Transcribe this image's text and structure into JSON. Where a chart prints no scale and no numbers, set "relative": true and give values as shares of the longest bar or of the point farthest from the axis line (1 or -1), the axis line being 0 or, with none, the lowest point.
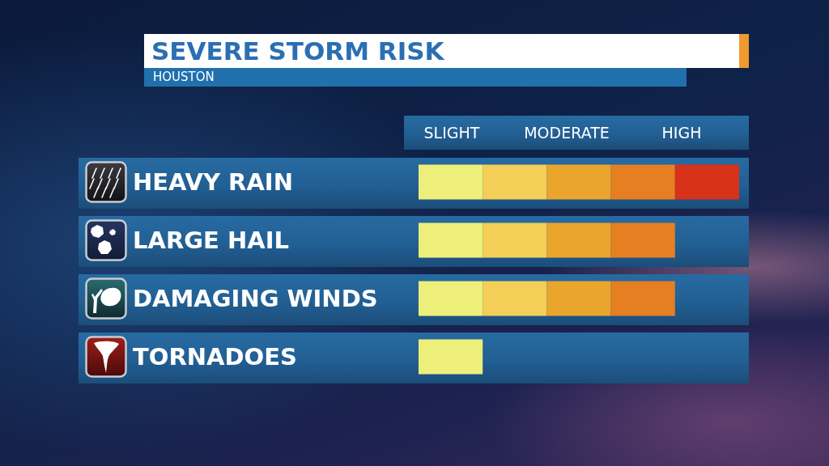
{
  "chart_data": {
    "type": "bar",
    "title": "SEVERE STORM RISK",
    "subtitle": "HOUSTON",
    "orientation": "horizontal",
    "stacked": true,
    "relative": true,
    "categories": [
      "HEAVY RAIN",
      "LARGE HAIL",
      "DAMAGING WINDS",
      "TORNADOES"
    ],
    "series": [
      {
        "color": "#eeee7a",
        "values": [
          0.2,
          0.2,
          0.2,
          0.2
        ]
      },
      {
        "color": "#f4cf57",
        "values": [
          0.2,
          0.2,
          0.2,
          null
        ]
      },
      {
        "color": "#eaa52c",
        "values": [
          0.2,
          0.2,
          0.2,
          null
        ]
      },
      {
        "color": "#e67f22",
        "values": [
          0.2,
          0.2,
          0.2,
          null
        ]
      },
      {
        "color": "#d9321a",
        "values": [
          0.2,
          null,
          null,
          null
        ]
      }
    ],
    "annotations": [
      "SLIGHT",
      "MODERATE",
      "HIGH"
    ]
  }
}
